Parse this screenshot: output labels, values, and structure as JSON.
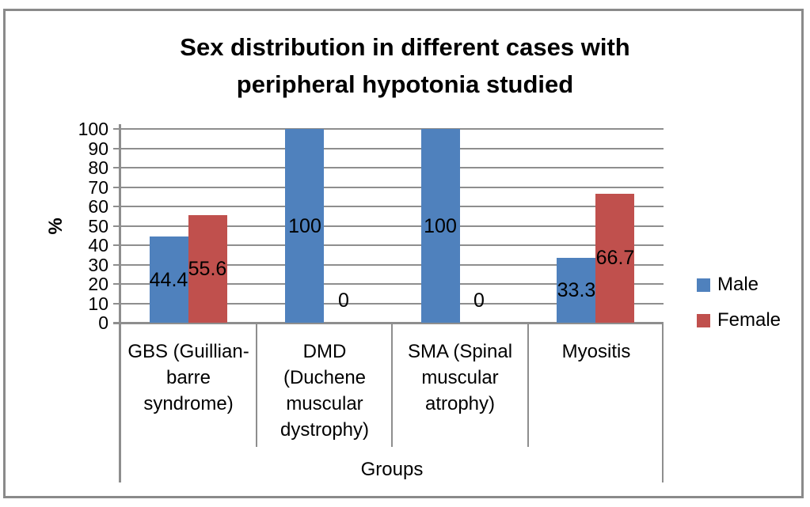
{
  "title_lines": [
    "Sex distribution in different cases with",
    "peripheral hypotonia studied"
  ],
  "y_axis_title": "%",
  "x_axis_title": "Groups",
  "legend": [
    {
      "label": "Male",
      "color": "#4F81BD"
    },
    {
      "label": "Female",
      "color": "#C0504D"
    }
  ],
  "style": {
    "male_color": "#4F81BD",
    "female_color": "#C0504D",
    "grid_color": "#8E8E8E",
    "border_color": "#8A8A8A",
    "text_color": "#000000"
  },
  "chart_data": {
    "type": "bar",
    "title": "Sex distribution in different cases with peripheral hypotonia studied",
    "xlabel": "Groups",
    "ylabel": "%",
    "ylim": [
      0,
      100
    ],
    "y_ticks": [
      100,
      90,
      80,
      70,
      60,
      50,
      40,
      30,
      20,
      10,
      0
    ],
    "grid": true,
    "legend_position": "right",
    "categories": [
      "GBS (Guillian-barre syndrome)",
      "DMD (Duchene muscular dystrophy)",
      "SMA (Spinal muscular atrophy)",
      "Myositis"
    ],
    "category_label_lines": [
      [
        "GBS (Guillian-",
        "barre",
        "syndrome)"
      ],
      [
        "DMD",
        "(Duchene",
        "muscular",
        "dystrophy)"
      ],
      [
        "SMA (Spinal",
        "muscular",
        "atrophy)"
      ],
      [
        "Myositis"
      ]
    ],
    "series": [
      {
        "name": "Male",
        "color": "#4F81BD",
        "values": [
          44.4,
          100,
          100,
          33.3
        ],
        "labels": [
          "44.4",
          "100",
          "100",
          "33.3"
        ]
      },
      {
        "name": "Female",
        "color": "#C0504D",
        "values": [
          55.6,
          0,
          0,
          66.7
        ],
        "labels": [
          "55.6",
          "0",
          "0",
          "66.7"
        ]
      }
    ]
  }
}
